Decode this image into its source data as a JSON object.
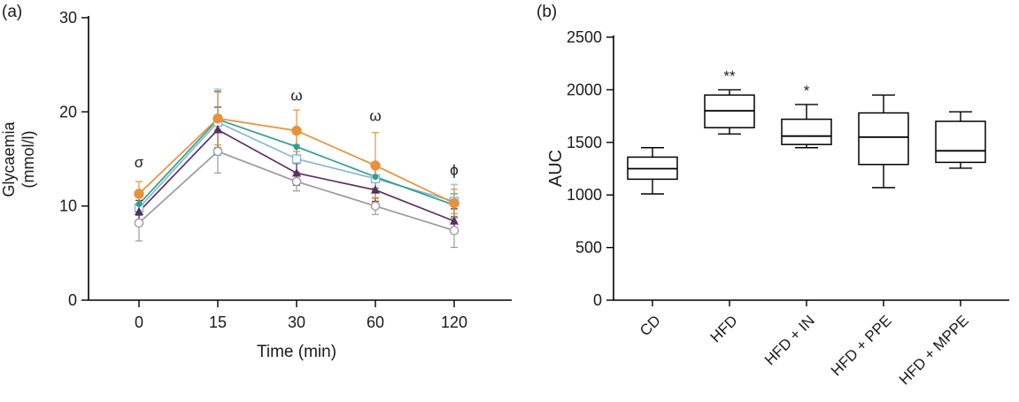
{
  "panels": {
    "a": {
      "label": "(a)"
    },
    "b": {
      "label": "(b)"
    }
  },
  "chart_data": [
    {
      "type": "line",
      "title": "",
      "xlabel": "Time (min)",
      "ylabel_lines": [
        "Glycaemia",
        "(mmol/l)"
      ],
      "x_categories": [
        "0",
        "15",
        "30",
        "60",
        "120"
      ],
      "ylim": [
        0,
        30
      ],
      "yticks": [
        0,
        10,
        20,
        30
      ],
      "grid": false,
      "legend": "none",
      "series": [
        {
          "name": "light-blue-open-square",
          "color": "#8CB4D6",
          "marker": "open-square",
          "values": [
            9.8,
            18.9,
            15.0,
            12.9,
            10.5
          ],
          "errors": [
            1.5,
            3.5,
            1.5,
            1.3,
            1.8
          ]
        },
        {
          "name": "teal-line",
          "color": "#2E9E8F",
          "marker": "small-filled-circle",
          "values": [
            10.2,
            19.2,
            16.3,
            13.1,
            10.1
          ],
          "errors": [
            1.2,
            3.0,
            1.8,
            1.2,
            1.2
          ]
        },
        {
          "name": "gray-open-circle",
          "color": "#9B9B9B",
          "marker": "open-circle",
          "values": [
            8.2,
            15.8,
            12.6,
            10.0,
            7.4
          ],
          "errors": [
            1.9,
            2.3,
            1.0,
            0.9,
            1.8
          ]
        },
        {
          "name": "purple-filled-triangle",
          "color": "#5C2D5E",
          "marker": "filled-triangle",
          "values": [
            9.4,
            18.1,
            13.5,
            11.7,
            8.4
          ],
          "errors": [
            1.2,
            2.4,
            1.3,
            1.2,
            1.3
          ]
        },
        {
          "name": "orange-filled-circle",
          "color": "#E8913A",
          "marker": "filled-circle",
          "values": [
            11.3,
            19.3,
            18.0,
            14.3,
            10.3
          ],
          "errors": [
            1.3,
            2.8,
            2.2,
            3.5,
            1.5
          ]
        }
      ],
      "annotations": [
        {
          "text": "σ",
          "x_index": 0,
          "y": 14.6
        },
        {
          "text": "ω",
          "x_index": 2,
          "y": 21.7
        },
        {
          "text": "ω",
          "x_index": 3,
          "y": 19.5
        },
        {
          "text": "ϕ",
          "x_index": 4,
          "y": 13.8
        }
      ]
    },
    {
      "type": "box",
      "title": "",
      "xlabel": "",
      "ylabel": "AUC",
      "ylim": [
        0,
        2500
      ],
      "yticks": [
        0,
        500,
        1000,
        1500,
        2000,
        2500
      ],
      "grid": false,
      "categories": [
        "CD",
        "HFD",
        "HFD + IN",
        "HFD + PPE",
        "HFD + MPPE"
      ],
      "boxes": [
        {
          "low": 1010,
          "q1": 1150,
          "median": 1250,
          "q3": 1360,
          "high": 1450,
          "annotation": ""
        },
        {
          "low": 1580,
          "q1": 1640,
          "median": 1800,
          "q3": 1950,
          "high": 2000,
          "annotation": "**"
        },
        {
          "low": 1450,
          "q1": 1480,
          "median": 1560,
          "q3": 1720,
          "high": 1860,
          "annotation": "*"
        },
        {
          "low": 1070,
          "q1": 1290,
          "median": 1550,
          "q3": 1780,
          "high": 1950,
          "annotation": ""
        },
        {
          "low": 1255,
          "q1": 1310,
          "median": 1420,
          "q3": 1700,
          "high": 1790,
          "annotation": ""
        }
      ]
    }
  ]
}
